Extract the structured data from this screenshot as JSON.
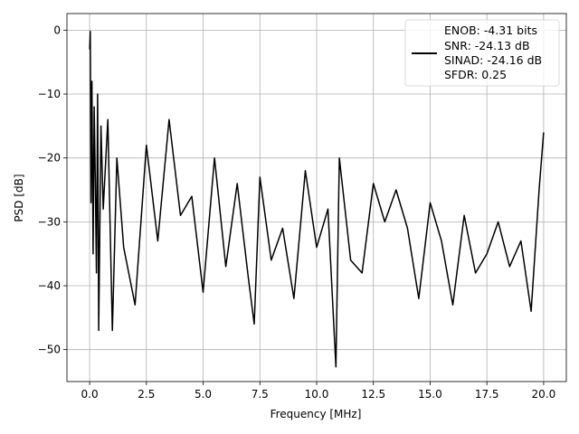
{
  "chart_data": {
    "type": "line",
    "title": "",
    "xlabel": "Frequency [MHz]",
    "ylabel": "PSD [dB]",
    "xlim": [
      -1.0,
      21.0
    ],
    "ylim": [
      -55.0,
      2.6
    ],
    "xticks": [
      0.0,
      2.5,
      5.0,
      7.5,
      10.0,
      12.5,
      15.0,
      17.5,
      20.0
    ],
    "xtick_labels": [
      "0.0",
      "2.5",
      "5.0",
      "7.5",
      "10.0",
      "12.5",
      "15.0",
      "17.5",
      "20.0"
    ],
    "yticks": [
      0,
      -10,
      -20,
      -30,
      -40,
      -50
    ],
    "ytick_labels": [
      "0",
      "−10",
      "−20",
      "−30",
      "−40",
      "−50"
    ],
    "grid": true,
    "legend_placement": "upper right",
    "legend_entries": [
      "ENOB: -4.31 bits",
      "SNR: -24.13 dB",
      "SINAD: -24.16 dB",
      "SFDR: 0.25"
    ],
    "series": [
      {
        "color": "#000000",
        "x": [
          0.0,
          0.03,
          0.06,
          0.1,
          0.15,
          0.2,
          0.25,
          0.3,
          0.35,
          0.4,
          0.5,
          0.6,
          0.8,
          1.0,
          1.2,
          1.5,
          2.0,
          2.5,
          3.0,
          3.5,
          4.0,
          4.5,
          5.0,
          5.5,
          6.0,
          6.5,
          7.0,
          7.25,
          7.5,
          8.0,
          8.5,
          9.0,
          9.5,
          10.0,
          10.5,
          10.85,
          11.0,
          11.5,
          12.0,
          12.5,
          13.0,
          13.5,
          14.0,
          14.5,
          15.0,
          15.5,
          16.0,
          16.5,
          17.0,
          17.5,
          18.0,
          18.5,
          19.0,
          19.45,
          19.8,
          20.0
        ],
        "y": [
          -3,
          -0.2,
          -27,
          -8,
          -35,
          -12,
          -24,
          -38,
          -10,
          -47,
          -15,
          -28,
          -14,
          -47,
          -20,
          -34,
          -43,
          -18,
          -33,
          -14,
          -29,
          -26,
          -41,
          -20,
          -37,
          -24,
          -39,
          -46,
          -23,
          -36,
          -31,
          -42,
          -22,
          -34,
          -28,
          -52.7,
          -20,
          -36,
          -38,
          -24,
          -30,
          -25,
          -31,
          -42,
          -27,
          -33,
          -43,
          -29,
          -38,
          -35,
          -30,
          -37,
          -33,
          -44,
          -25,
          -16
        ]
      }
    ]
  }
}
